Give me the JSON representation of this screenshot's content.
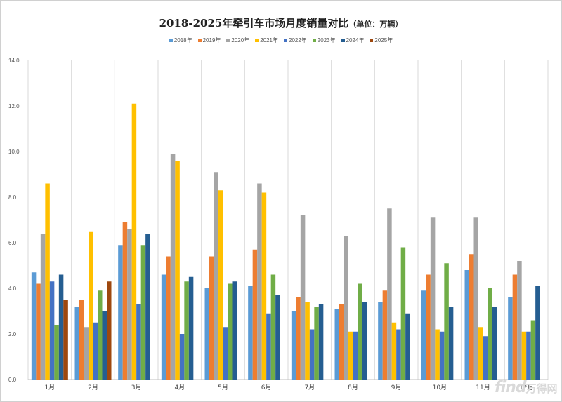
{
  "chart_data": {
    "type": "bar",
    "title": "2018-2025年牵引车市场月度销量对比",
    "unit_note": "（单位：万辆）",
    "categories": [
      "1月",
      "2月",
      "3月",
      "4月",
      "5月",
      "6月",
      "7月",
      "8月",
      "9月",
      "10月",
      "11月",
      "12月"
    ],
    "ylim": [
      0,
      14
    ],
    "yticks": [
      "0.0",
      "2.0",
      "4.0",
      "6.0",
      "8.0",
      "10.0",
      "12.0",
      "14.0"
    ],
    "legend_position": "top",
    "grid": "vertical separators",
    "series": [
      {
        "name": "2018年",
        "color": "#5b9bd5",
        "values": [
          4.7,
          3.2,
          5.9,
          4.6,
          4.0,
          4.1,
          3.0,
          3.1,
          3.4,
          3.9,
          4.8,
          3.6
        ]
      },
      {
        "name": "2019年",
        "color": "#ed7d31",
        "values": [
          4.2,
          3.5,
          6.9,
          5.4,
          5.4,
          5.7,
          3.6,
          3.3,
          3.9,
          4.6,
          5.5,
          4.6
        ]
      },
      {
        "name": "2020年",
        "color": "#a5a5a5",
        "values": [
          6.4,
          2.3,
          6.6,
          9.9,
          9.1,
          8.6,
          7.2,
          6.3,
          7.5,
          7.1,
          7.1,
          5.2
        ]
      },
      {
        "name": "2021年",
        "color": "#ffc000",
        "values": [
          8.6,
          6.5,
          12.1,
          9.6,
          8.3,
          8.2,
          3.4,
          2.1,
          2.5,
          2.2,
          2.3,
          2.1
        ]
      },
      {
        "name": "2022年",
        "color": "#4472c4",
        "values": [
          4.3,
          2.5,
          3.3,
          2.0,
          2.3,
          2.9,
          2.2,
          2.1,
          2.2,
          2.1,
          1.9,
          2.1
        ]
      },
      {
        "name": "2023年",
        "color": "#70ad47",
        "values": [
          2.4,
          3.9,
          5.9,
          4.3,
          4.2,
          4.6,
          3.2,
          4.2,
          5.8,
          5.1,
          4.0,
          2.6
        ]
      },
      {
        "name": "2024年",
        "color": "#255e91",
        "values": [
          4.6,
          3.0,
          6.4,
          4.5,
          4.3,
          3.7,
          3.3,
          3.4,
          2.9,
          3.2,
          3.2,
          4.1
        ]
      },
      {
        "name": "2025年",
        "color": "#9e480e",
        "values": [
          3.5,
          4.3,
          null,
          null,
          null,
          null,
          null,
          null,
          null,
          null,
          null,
          null
        ]
      }
    ]
  },
  "watermark": {
    "text": "find",
    "cn": "万得网"
  }
}
